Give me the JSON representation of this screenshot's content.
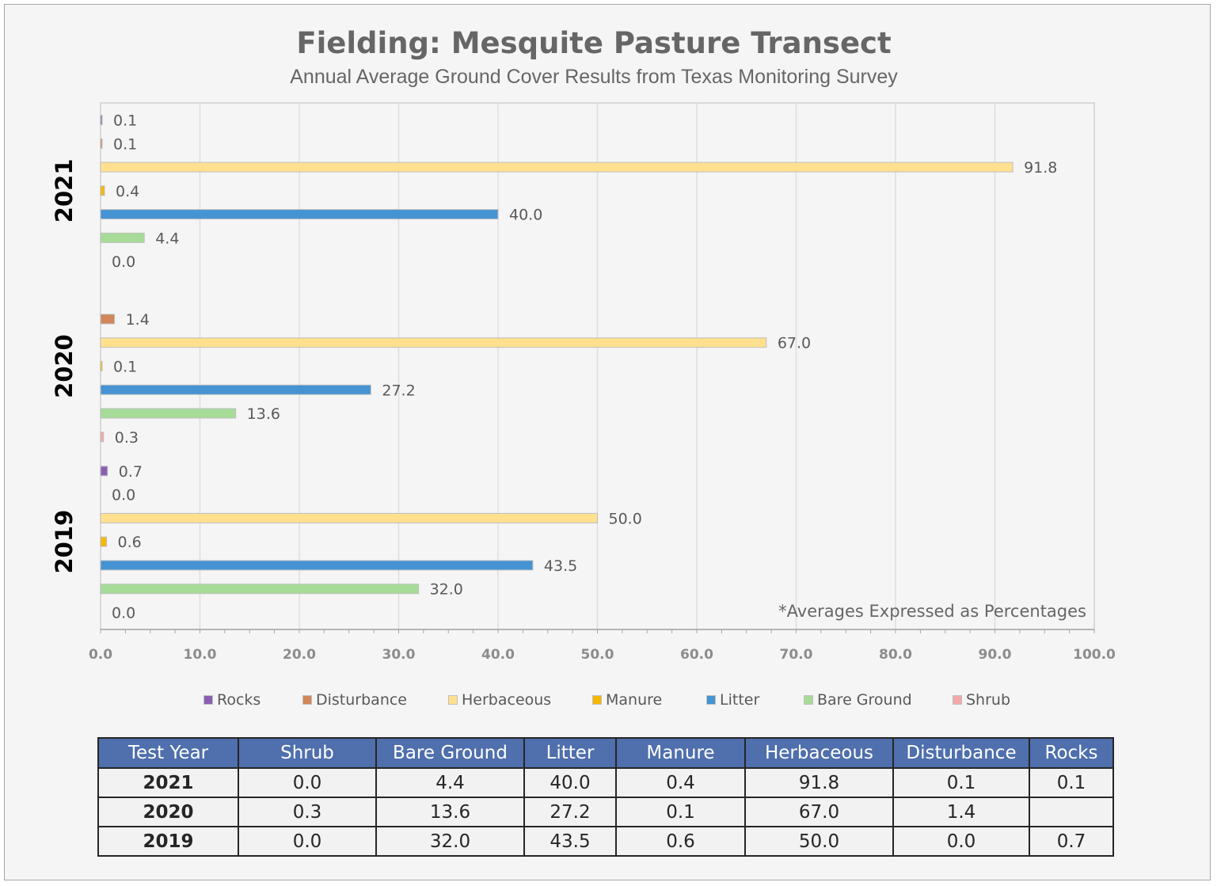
{
  "colors": {
    "Rocks": "#8a5fb0",
    "Disturbance": "#d0875a",
    "Herbaceous": "#ffe08f",
    "Manure": "#f5b800",
    "Litter": "#4593d3",
    "Bare Ground": "#a6dc97",
    "Shrub": "#f4a9a9"
  },
  "chart_data": {
    "type": "bar",
    "orientation": "horizontal",
    "title": "Fielding: Mesquite Pasture Transect",
    "subtitle": "Annual Average Ground Cover Results from Texas Monitoring Survey",
    "note": "*Averages Expressed as Percentages",
    "categories": [
      "2021",
      "2020",
      "2019"
    ],
    "xlim": [
      0,
      100
    ],
    "x_ticks": [
      "0.0",
      "10.0",
      "20.0",
      "30.0",
      "40.0",
      "50.0",
      "60.0",
      "70.0",
      "80.0",
      "90.0",
      "100.0"
    ],
    "grid": true,
    "legend_position": "bottom",
    "legend": [
      "Rocks",
      "Disturbance",
      "Herbaceous",
      "Manure",
      "Litter",
      "Bare Ground",
      "Shrub"
    ],
    "bar_order_top_to_bottom": [
      "Rocks",
      "Disturbance",
      "Herbaceous",
      "Manure",
      "Litter",
      "Bare Ground",
      "Shrub"
    ],
    "series": [
      {
        "name": "Rocks",
        "values": [
          0.1,
          null,
          0.7
        ],
        "labels": [
          "0.1",
          "",
          "0.7"
        ]
      },
      {
        "name": "Disturbance",
        "values": [
          0.1,
          1.4,
          0.0
        ],
        "labels": [
          "0.1",
          "1.4",
          "0.0"
        ]
      },
      {
        "name": "Herbaceous",
        "values": [
          91.8,
          67.0,
          50.0
        ],
        "labels": [
          "91.8",
          "67.0",
          "50.0"
        ]
      },
      {
        "name": "Manure",
        "values": [
          0.4,
          0.1,
          0.6
        ],
        "labels": [
          "0.4",
          "0.1",
          "0.6"
        ]
      },
      {
        "name": "Litter",
        "values": [
          40.0,
          27.2,
          43.5
        ],
        "labels": [
          "40.0",
          "27.2",
          "43.5"
        ]
      },
      {
        "name": "Bare Ground",
        "values": [
          4.4,
          13.6,
          32.0
        ],
        "labels": [
          "4.4",
          "13.6",
          "32.0"
        ]
      },
      {
        "name": "Shrub",
        "values": [
          0.0,
          0.3,
          0.0
        ],
        "labels": [
          "0.0",
          "0.3",
          "0.0"
        ]
      }
    ]
  },
  "table": {
    "headers": [
      "Test Year",
      "Shrub",
      "Bare Ground",
      "Litter",
      "Manure",
      "Herbaceous",
      "Disturbance",
      "Rocks"
    ],
    "rows": [
      [
        "2021",
        "0.0",
        "4.4",
        "40.0",
        "0.4",
        "91.8",
        "0.1",
        "0.1"
      ],
      [
        "2020",
        "0.3",
        "13.6",
        "27.2",
        "0.1",
        "67.0",
        "1.4",
        ""
      ],
      [
        "2019",
        "0.0",
        "32.0",
        "43.5",
        "0.6",
        "50.0",
        "0.0",
        "0.7"
      ]
    ]
  }
}
